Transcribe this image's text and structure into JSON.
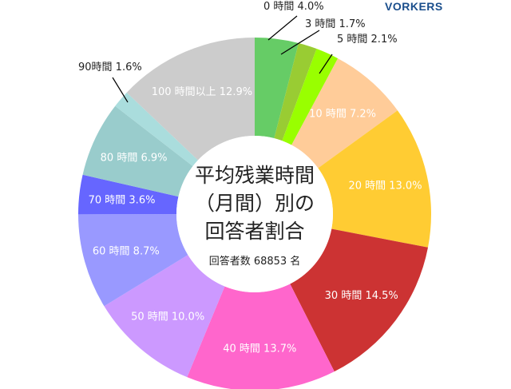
{
  "logo": "VORKERS",
  "chart_data": {
    "type": "pie",
    "donut": true,
    "title_lines": [
      "平均残業時間",
      "（月間）別の",
      "回答者割合"
    ],
    "subtitle": "回答者数 68853 名",
    "start": "top",
    "direction": "clockwise",
    "slices": [
      {
        "label": "0 時間 4.0%",
        "value": 4.0,
        "color": "#66cc66",
        "label_outside": true
      },
      {
        "label": "3 時間 1.7%",
        "value": 1.7,
        "color": "#99cc33",
        "label_outside": true
      },
      {
        "label": "5 時間 2.1%",
        "value": 2.1,
        "color": "#99ff00",
        "label_outside": true
      },
      {
        "label": "10 時間 7.2%",
        "value": 7.2,
        "color": "#ffcc99"
      },
      {
        "label": "20 時間 13.0%",
        "value": 13.0,
        "color": "#ffcc33"
      },
      {
        "label": "30 時間 14.5%",
        "value": 14.5,
        "color": "#cc3333"
      },
      {
        "label": "40 時間 13.7%",
        "value": 13.7,
        "color": "#ff66cc"
      },
      {
        "label": "50 時間 10.0%",
        "value": 10.0,
        "color": "#cc99ff"
      },
      {
        "label": "60 時間 8.7%",
        "value": 8.7,
        "color": "#9999ff"
      },
      {
        "label": "70 時間 3.6%",
        "value": 3.6,
        "color": "#6666ff"
      },
      {
        "label": "80 時間 6.9%",
        "value": 6.9,
        "color": "#99cccc"
      },
      {
        "label": "90時間 1.6%",
        "value": 1.6,
        "color": "#aadddd",
        "label_outside": true
      },
      {
        "label": "100 時間以上 12.9%",
        "value": 12.9,
        "color": "#cccccc"
      }
    ]
  }
}
